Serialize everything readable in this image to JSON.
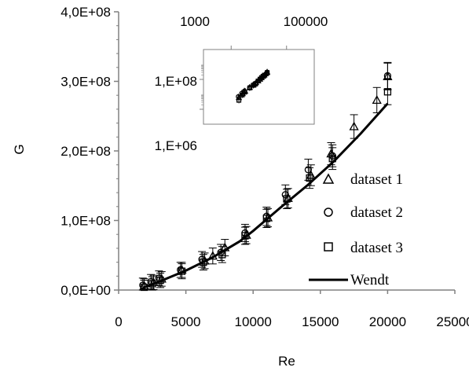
{
  "chart_data": {
    "type": "scatter",
    "xlabel": "Re",
    "ylabel": "G",
    "xlim": [
      0,
      25000
    ],
    "ylim": [
      0,
      400000000
    ],
    "x_ticks": [
      0,
      5000,
      10000,
      15000,
      20000,
      25000
    ],
    "x_tick_labels": [
      "0",
      "5000",
      "10000",
      "15000",
      "20000",
      "25000"
    ],
    "y_ticks": [
      0,
      100000000,
      200000000,
      300000000,
      400000000
    ],
    "y_tick_labels": [
      "0,0E+00",
      "1,0E+08",
      "2,0E+08",
      "3,0E+08",
      "4,0E+08"
    ],
    "grid": false,
    "legend_position": "bottom-right",
    "series": [
      {
        "name": "dataset 1",
        "marker": "triangle",
        "x": [
          1900,
          2600,
          3200,
          4700,
          6400,
          7000,
          7900,
          9500,
          11100,
          12600,
          14300,
          15800,
          17500,
          19200,
          20000
        ],
        "y": [
          6000000,
          11000000,
          16000000,
          29000000,
          42000000,
          49000000,
          61000000,
          79000000,
          104000000,
          132000000,
          165000000,
          196000000,
          235000000,
          273000000,
          307000000
        ]
      },
      {
        "name": "dataset 2",
        "marker": "circle",
        "x": [
          1800,
          2400,
          3000,
          4600,
          6200,
          7600,
          9400,
          11000,
          12400,
          14100,
          15900,
          20000
        ],
        "y": [
          7000000,
          12000000,
          17000000,
          29000000,
          44000000,
          54000000,
          82000000,
          106000000,
          137000000,
          173000000,
          193000000,
          308000000
        ]
      },
      {
        "name": "dataset 3",
        "marker": "square",
        "x": [
          1900,
          2500,
          3100,
          4700,
          6300,
          7700,
          9400,
          11000,
          12500,
          14200,
          15900,
          20000
        ],
        "y": [
          4000000,
          9000000,
          14000000,
          27000000,
          40000000,
          51000000,
          78000000,
          103000000,
          131000000,
          161000000,
          189000000,
          285000000
        ]
      },
      {
        "name": "Wendt",
        "type": "line",
        "x": [
          1800,
          3000,
          5000,
          7000,
          9000,
          10000,
          12000,
          14000,
          16000,
          18000,
          20000
        ],
        "y": [
          3000000,
          12000000,
          28000000,
          47000000,
          70000000,
          85000000,
          118000000,
          150000000,
          185000000,
          225000000,
          268000000
        ]
      }
    ],
    "inset": {
      "type": "scatter",
      "x_scale": "log",
      "y_scale": "log",
      "xlim": [
        100,
        1000000
      ],
      "ylim": [
        100000,
        10000000000
      ],
      "x_tick_labels": [
        "1000",
        "100000"
      ],
      "y_tick_labels": [
        "1,E+06",
        "1,E+08"
      ]
    }
  }
}
